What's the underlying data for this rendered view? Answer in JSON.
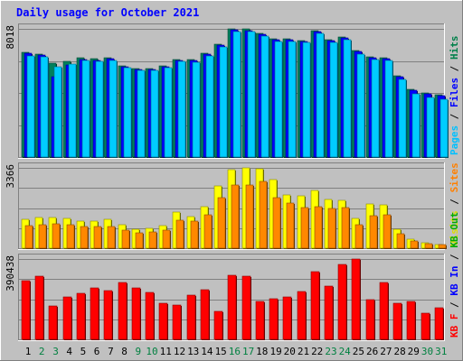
{
  "chart_data": {
    "type": "bar",
    "title": "Daily usage for October 2021",
    "categories": [
      "1",
      "2",
      "3",
      "4",
      "5",
      "6",
      "7",
      "8",
      "9",
      "10",
      "11",
      "12",
      "13",
      "14",
      "15",
      "16",
      "17",
      "18",
      "19",
      "20",
      "21",
      "22",
      "23",
      "24",
      "25",
      "26",
      "27",
      "28",
      "29",
      "30",
      "31"
    ],
    "weekend_days": [
      "2",
      "3",
      "9",
      "10",
      "16",
      "17",
      "23",
      "24",
      "30",
      "31"
    ],
    "panels": [
      {
        "id": "requests",
        "ymax_label": "8018",
        "ymax": 8018,
        "right_labels": [
          {
            "text": "Pages",
            "color": "#00c0ff"
          },
          {
            "text": "Files",
            "color": "#0000ff"
          },
          {
            "text": "Hits",
            "color": "#00804a"
          }
        ],
        "series": [
          {
            "name": "Hits",
            "color": "#00805c",
            "values": [
              6540,
              6420,
              5870,
              5980,
              6190,
              6130,
              6190,
              5720,
              5560,
              5560,
              5710,
              6120,
              6090,
              6520,
              7060,
              8018,
              7990,
              7740,
              7380,
              7380,
              7310,
              7900,
              7340,
              7510,
              6660,
              6290,
              6230,
              5070,
              4220,
              4000,
              3900
            ]
          },
          {
            "name": "Files",
            "color": "#0000ff",
            "values": [
              6480,
              6360,
              5040,
              5760,
              6120,
              6050,
              6130,
              5660,
              5490,
              5490,
              5650,
              6060,
              6030,
              6460,
              7000,
              7960,
              7930,
              7680,
              7320,
              7320,
              7250,
              7840,
              7280,
              7450,
              6600,
              6230,
              6170,
              5010,
              4160,
              3940,
              3840
            ]
          },
          {
            "name": "Pages",
            "color": "#00ccff",
            "values": [
              6350,
              6240,
              5650,
              5840,
              6030,
              5970,
              6040,
              5590,
              5400,
              5430,
              5580,
              5960,
              5920,
              6350,
              6900,
              7860,
              7830,
              7570,
              7200,
              7210,
              7160,
              7750,
              7160,
              7330,
              6440,
              6100,
              6030,
              4850,
              3960,
              3720,
              3640
            ]
          }
        ]
      },
      {
        "id": "visitors",
        "ymax_label": "3366",
        "ymax": 3366,
        "right_labels": [
          {
            "text": "Visits",
            "color": "#dddd00"
          },
          {
            "text": "Sites",
            "color": "#ff8000"
          }
        ],
        "series": [
          {
            "name": "Visits",
            "color": "#ffff00",
            "values": [
              1220,
              1290,
              1290,
              1260,
              1120,
              1130,
              1220,
              980,
              800,
              830,
              960,
              1500,
              1340,
              1740,
              2600,
              3300,
              3366,
              3340,
              2880,
              2230,
              2180,
              2410,
              2060,
              1990,
              1240,
              1840,
              1810,
              790,
              370,
              210,
              160
            ]
          },
          {
            "name": "Sites",
            "color": "#ff8800",
            "values": [
              940,
              990,
              1010,
              980,
              900,
              900,
              900,
              740,
              650,
              680,
              760,
              1190,
              1120,
              1400,
              2100,
              2660,
              2660,
              2800,
              2100,
              1900,
              1720,
              1750,
              1650,
              1700,
              1000,
              1350,
              1390,
              620,
              300,
              190,
              140
            ]
          }
        ]
      },
      {
        "id": "traffic",
        "ymax_label": "390438",
        "ymax": 390438,
        "right_labels": [
          {
            "text": "KB F",
            "color": "#ff0000"
          },
          {
            "text": "KB In",
            "color": "#0000ff"
          },
          {
            "text": "KB Out",
            "color": "#00aa00"
          }
        ],
        "series": [
          {
            "name": "KB F",
            "color": "#ff0000",
            "values": [
              285000,
              309000,
              161000,
              208000,
              222000,
              252000,
              238000,
              275000,
              248000,
              226000,
              175000,
              166000,
              214000,
              240000,
              137000,
              310000,
              305000,
              184000,
              198000,
              205000,
              234000,
              327000,
              261000,
              365000,
              390438,
              193000,
              277000,
              176000,
              183000,
              127000,
              153000
            ]
          }
        ]
      }
    ]
  }
}
